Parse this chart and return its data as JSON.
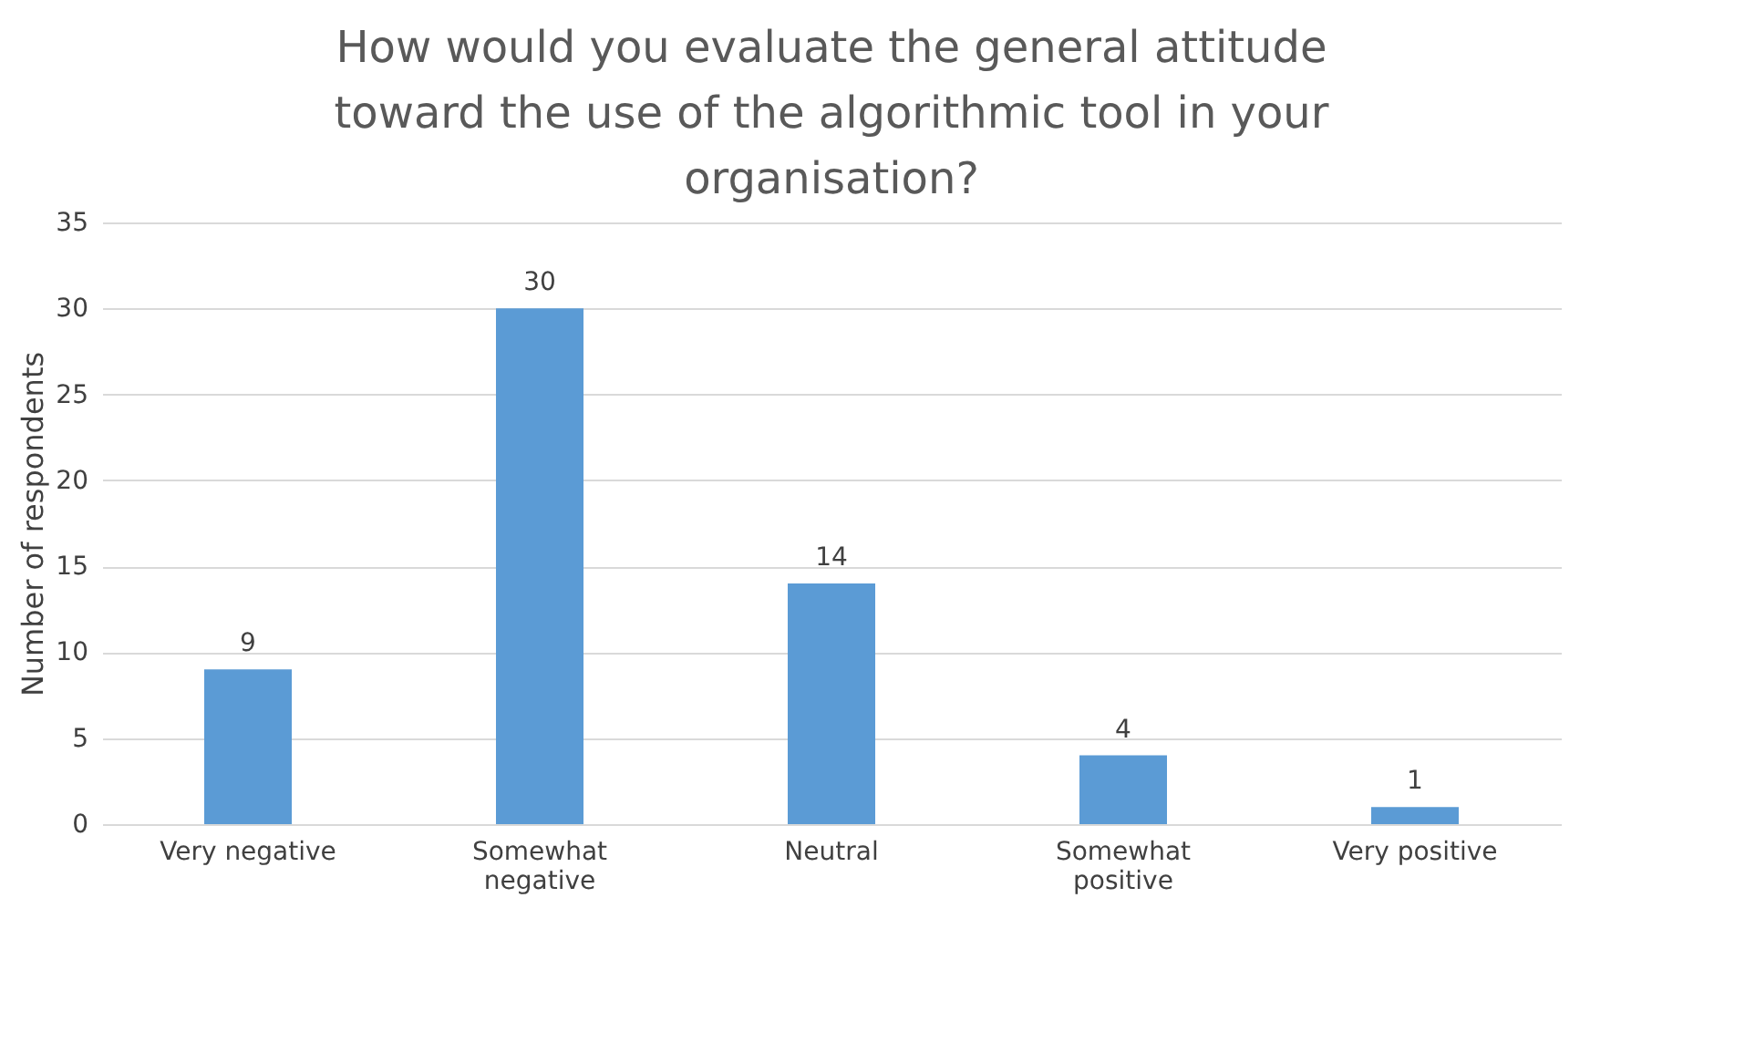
{
  "chart_data": {
    "type": "bar",
    "title": "How would you evaluate the general attitude toward the use of the algorithmic tool in your organisation?",
    "ylabel": "Number of respondents",
    "categories": [
      "Very negative",
      "Somewhat negative",
      "Neutral",
      "Somewhat positive",
      "Very positive"
    ],
    "values": [
      9,
      30,
      14,
      4,
      1
    ],
    "color": "#5b9bd5",
    "ylim": [
      0,
      35
    ],
    "yticks": [
      0,
      5,
      10,
      15,
      20,
      25,
      30,
      35
    ],
    "grid": "y",
    "data_labels": true
  }
}
